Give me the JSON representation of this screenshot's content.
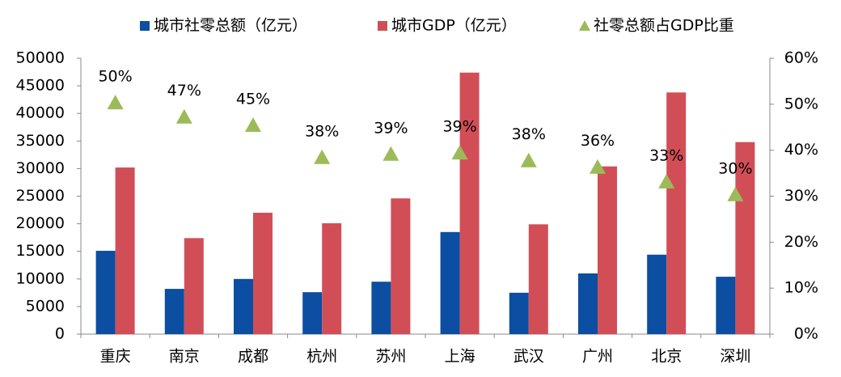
{
  "chart_data": {
    "type": "bar",
    "categories": [
      "重庆",
      "南京",
      "成都",
      "杭州",
      "苏州",
      "上海",
      "武汉",
      "广州",
      "北京",
      "深圳"
    ],
    "series": [
      {
        "name": "城市社零总额（亿元）",
        "color": "#0b4ea2",
        "type": "bar",
        "values": [
          15100,
          8200,
          10000,
          7600,
          9500,
          18500,
          7500,
          11000,
          14400,
          10400
        ]
      },
      {
        "name": "城市GDP（亿元）",
        "color": "#d24e57",
        "type": "bar",
        "values": [
          30200,
          17400,
          22000,
          20100,
          24600,
          47400,
          19900,
          30400,
          43800,
          34800
        ]
      },
      {
        "name": "社零总额占GDP比重",
        "color": "#9bbb59",
        "type": "scatter",
        "axis": "y2",
        "marker": "triangle",
        "values": [
          50.3,
          47.2,
          45.4,
          38.4,
          39.1,
          39.4,
          37.7,
          36.3,
          33.1,
          30.3
        ],
        "value_labels": [
          "50%",
          "47%",
          "45%",
          "38%",
          "39%",
          "39%",
          "38%",
          "36%",
          "33%",
          "30%"
        ]
      }
    ],
    "ylim": [
      0,
      50000
    ],
    "yticks": [
      0,
      5000,
      10000,
      15000,
      20000,
      25000,
      30000,
      35000,
      40000,
      45000,
      50000
    ],
    "y2lim": [
      0,
      60
    ],
    "y2ticks": [
      {
        "value": 0,
        "label": "0%"
      },
      {
        "value": 10,
        "label": "10%"
      },
      {
        "value": 20,
        "label": "20%"
      },
      {
        "value": 30,
        "label": "30%"
      },
      {
        "value": 40,
        "label": "40%"
      },
      {
        "value": 50,
        "label": "50%"
      },
      {
        "value": 60,
        "label": "60%"
      }
    ],
    "grid": false,
    "legend": "top"
  }
}
